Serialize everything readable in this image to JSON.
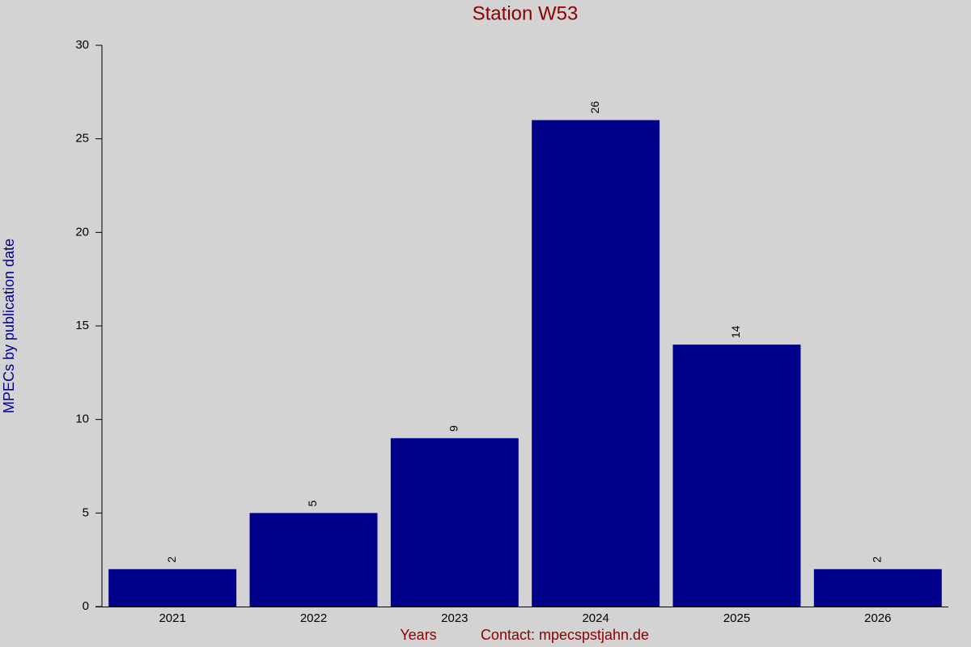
{
  "chart_data": {
    "type": "bar",
    "title": "Station W53",
    "y_label": "MPECs by publication date",
    "x_label": "Years",
    "annotation": "Contact: mpecspstjahn.de",
    "categories": [
      "2021",
      "2022",
      "2023",
      "2024",
      "2025",
      "2026"
    ],
    "values": [
      2,
      5,
      9,
      26,
      14,
      2
    ],
    "color": "#00008b",
    "ylim": [
      0,
      30
    ],
    "yticks": [
      0,
      5,
      10,
      15,
      20,
      25,
      30
    ],
    "grid": false
  }
}
